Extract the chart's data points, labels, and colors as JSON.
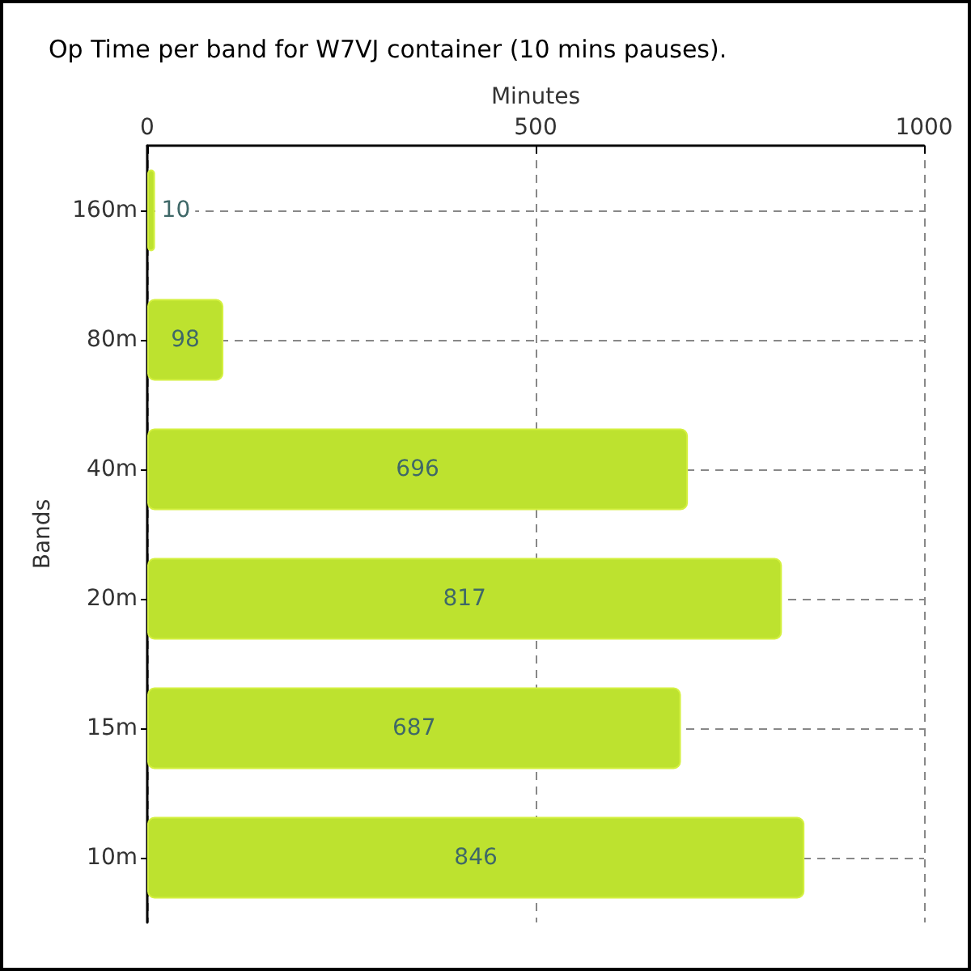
{
  "chart_data": {
    "type": "bar",
    "orientation": "horizontal",
    "title": "Op Time per band for W7VJ container (10 mins pauses).",
    "xlabel": "Minutes",
    "ylabel": "Bands",
    "categories": [
      "160m",
      "80m",
      "40m",
      "20m",
      "15m",
      "10m"
    ],
    "values": [
      10,
      98,
      696,
      817,
      687,
      846
    ],
    "color": "#bde22f",
    "xlim": [
      0,
      1000
    ],
    "xticks": [
      0,
      500,
      1000
    ],
    "grid": true,
    "data_labels": true
  }
}
